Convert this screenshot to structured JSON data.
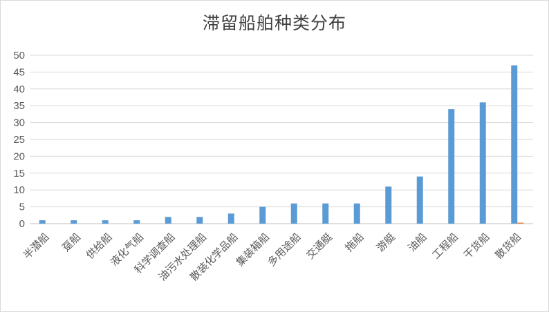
{
  "chart_data": {
    "type": "bar",
    "title": "滞留船舶种类分布",
    "xlabel": "",
    "ylabel": "",
    "ylim": [
      0,
      50
    ],
    "yticks": [
      0,
      5,
      10,
      15,
      20,
      25,
      30,
      35,
      40,
      45,
      50
    ],
    "grid": true,
    "legend": "none",
    "categories": [
      "半潜船",
      "趸船",
      "供给船",
      "液化气船",
      "科学调查船",
      "油污水处理船",
      "散装化学品船",
      "集装箱船",
      "多用途船",
      "交通艇",
      "拖船",
      "游艇",
      "油船",
      "工程船",
      "干货船",
      "散货船"
    ],
    "series": [
      {
        "values": [
          1,
          1,
          1,
          1,
          2,
          2,
          3,
          5,
          6,
          6,
          6,
          11,
          14,
          34,
          36,
          47
        ],
        "color": "#5b9bd5"
      },
      {
        "values": [
          0,
          0,
          0,
          0,
          0,
          0,
          0,
          0,
          0,
          0,
          0,
          0,
          0,
          0,
          0,
          0.3
        ],
        "color": "#ed7d31"
      }
    ]
  }
}
